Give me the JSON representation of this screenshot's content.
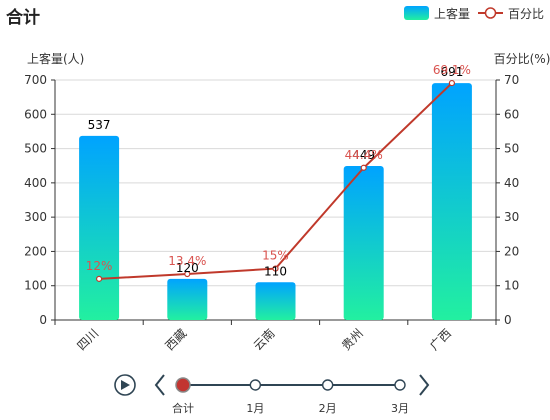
{
  "colors": {
    "bar_top": "#00a3ff",
    "bar_bottom": "#22f0a0",
    "line": "#c0392b",
    "axis": "#333333",
    "grid": "#d9d9d9",
    "timeline": "#2f4554",
    "timeline_active": "#c23531"
  },
  "chart_data": {
    "type": "bar",
    "title": "合计",
    "categories": [
      "四川",
      "西藏",
      "云南",
      "贵州",
      "广西"
    ],
    "series": [
      {
        "name": "上客量",
        "type": "bar",
        "axis": "left",
        "values": [
          537,
          120,
          110,
          449,
          691
        ]
      },
      {
        "name": "百分比",
        "type": "line",
        "axis": "right",
        "values": [
          12,
          13.4,
          15,
          44.4,
          69.1
        ]
      }
    ],
    "bar_labels": [
      "537",
      "120",
      "110",
      "449",
      "691"
    ],
    "line_labels": [
      "12%",
      "13.4%",
      "15%",
      "44.4%",
      "69.1%"
    ],
    "ylabel_left": "上客量(人)",
    "ylabel_right": "百分比(%)",
    "ylim_left": [
      0,
      700
    ],
    "ylim_right": [
      0,
      70
    ],
    "yticks_left": [
      "0",
      "100",
      "200",
      "300",
      "400",
      "500",
      "600",
      "700"
    ],
    "yticks_right": [
      "0",
      "10",
      "20",
      "30",
      "40",
      "50",
      "60",
      "70"
    ],
    "grid": true,
    "legend_position": "top-right"
  },
  "timeline": {
    "items": [
      "合计",
      "1月",
      "2月",
      "3月"
    ],
    "active_index": 0
  }
}
